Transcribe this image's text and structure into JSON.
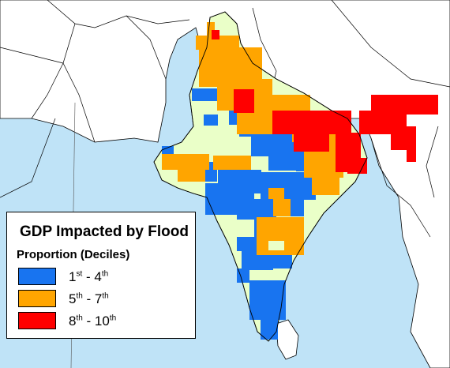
{
  "legend": {
    "title": "GDP Impacted by Flood",
    "subtitle": "Proportion (Deciles)",
    "items": [
      {
        "from": "1",
        "from_suffix": "st",
        "sep": " - ",
        "to": "4",
        "to_suffix": "th",
        "color": "#1874f0"
      },
      {
        "from": "5",
        "from_suffix": "th",
        "sep": " - ",
        "to": "7",
        "to_suffix": "th",
        "color": "#ffa500"
      },
      {
        "from": "8",
        "from_suffix": "th",
        "sep": " - ",
        "to": "10",
        "to_suffix": "th",
        "color": "#ff0000"
      }
    ]
  },
  "colors": {
    "sea": "#bfe3f7",
    "neighbor_land": "#ffffff",
    "base_land": "#eaffc8",
    "border_line": "#000000"
  }
}
